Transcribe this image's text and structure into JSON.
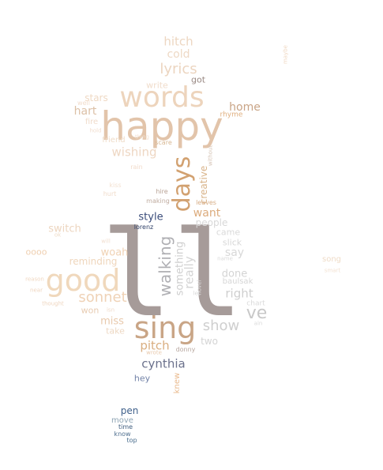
{
  "words": [
    {
      "text": "ll",
      "color": "#a69b99"
    },
    {
      "text": "happy",
      "color": "#e2c4aa"
    },
    {
      "text": "sing",
      "color": "#c9a586"
    },
    {
      "text": "good",
      "color": "#f0d8bc"
    },
    {
      "text": "words",
      "color": "#edd4bc"
    },
    {
      "text": "days",
      "color": "#d2a170"
    },
    {
      "text": "walking",
      "color": "#b0b0b4"
    },
    {
      "text": "something",
      "color": "#cfcfcf"
    },
    {
      "text": "really",
      "color": "#d4d4d4"
    },
    {
      "text": "creative",
      "color": "#d9b48a"
    },
    {
      "text": "ve",
      "color": "#c8c8c8"
    },
    {
      "text": "show",
      "color": "#cfcfcf"
    },
    {
      "text": "sonnet",
      "color": "#efd2b6"
    },
    {
      "text": "lyrics",
      "color": "#ecd5c0"
    },
    {
      "text": "cynthia",
      "color": "#6b718c"
    },
    {
      "text": "pitch",
      "color": "#d9ae80"
    },
    {
      "text": "hitch",
      "color": "#edd7c2"
    },
    {
      "text": "cold",
      "color": "#eed9c5"
    },
    {
      "text": "right",
      "color": "#cfcfcf"
    },
    {
      "text": "wishing",
      "color": "#eed7c3"
    },
    {
      "text": "home",
      "color": "#c9a486"
    },
    {
      "text": "hart",
      "color": "#dcc0a6"
    },
    {
      "text": "want",
      "color": "#dcab7c"
    },
    {
      "text": "say",
      "color": "#d8d8d8"
    },
    {
      "text": "done",
      "color": "#d4d4d4"
    },
    {
      "text": "woah",
      "color": "#f0d2b4"
    },
    {
      "text": "miss",
      "color": "#e8c9ac"
    },
    {
      "text": "style",
      "color": "#3a4c7a"
    },
    {
      "text": "switch",
      "color": "#edd6c0"
    },
    {
      "text": "reminding",
      "color": "#efd6bc"
    },
    {
      "text": "people",
      "color": "#d8d8d8"
    },
    {
      "text": "stars",
      "color": "#efd9c4"
    },
    {
      "text": "pen",
      "color": "#3d5f8a"
    },
    {
      "text": "hey",
      "color": "#7383a8"
    },
    {
      "text": "oooo",
      "color": "#efcfb0"
    },
    {
      "text": "won",
      "color": "#e8ccb2"
    },
    {
      "text": "take",
      "color": "#eed9c4"
    },
    {
      "text": "two",
      "color": "#d4d4d4"
    },
    {
      "text": "came",
      "color": "#dadada"
    },
    {
      "text": "slick",
      "color": "#d8d8d8"
    },
    {
      "text": "baulsak",
      "color": "#d6d6d6"
    },
    {
      "text": "got",
      "color": "#9a8a84"
    },
    {
      "text": "write",
      "color": "#f0dccb"
    },
    {
      "text": "knew",
      "color": "#e9b98c"
    },
    {
      "text": "song",
      "color": "#efdcc8"
    },
    {
      "text": "move",
      "color": "#8ea4b4"
    },
    {
      "text": "fire",
      "color": "#f0dccb"
    },
    {
      "text": "friend",
      "color": "#efdcc8"
    },
    {
      "text": "rhyme",
      "color": "#e0b080"
    },
    {
      "text": "chart",
      "color": "#dadada"
    },
    {
      "text": "donny",
      "color": "#b8a8a0"
    },
    {
      "text": "lorenz",
      "color": "#2c3e66"
    },
    {
      "text": "hire",
      "color": "#b9a396"
    },
    {
      "text": "making",
      "color": "#c0aca0"
    },
    {
      "text": "time",
      "color": "#3e5c7e"
    },
    {
      "text": "know",
      "color": "#4f6f8f"
    },
    {
      "text": "top",
      "color": "#4a6e8e"
    },
    {
      "text": "leaves",
      "color": "#d7ad85"
    },
    {
      "text": "well",
      "color": "#f2dccb"
    },
    {
      "text": "hold",
      "color": "#f2dfcf"
    },
    {
      "text": "scare",
      "color": "#d8b894"
    },
    {
      "text": "thing",
      "color": "#f3e2d2"
    },
    {
      "text": "rain",
      "color": "#f2dccb"
    },
    {
      "text": "kiss",
      "color": "#f3e1d1"
    },
    {
      "text": "hurt",
      "color": "#f0dccb"
    },
    {
      "text": "will",
      "color": "#f2dfd0"
    },
    {
      "text": "ok",
      "color": "#efdcc8"
    },
    {
      "text": "reason",
      "color": "#f0d8c2"
    },
    {
      "text": "near",
      "color": "#efd6c0"
    },
    {
      "text": "thought",
      "color": "#efd6c0"
    },
    {
      "text": "isn",
      "color": "#f0dccb"
    },
    {
      "text": "wrote",
      "color": "#e8c9ac"
    },
    {
      "text": "let",
      "color": "#d8d8d8"
    },
    {
      "text": "novel",
      "color": "#dadada"
    },
    {
      "text": "name",
      "color": "#dadada"
    },
    {
      "text": "ain",
      "color": "#dadada"
    },
    {
      "text": "smart",
      "color": "#f3e2d2"
    },
    {
      "text": "maybe",
      "color": "#f0d8c2"
    },
    {
      "text": "without",
      "color": "#d6c4b6"
    }
  ]
}
